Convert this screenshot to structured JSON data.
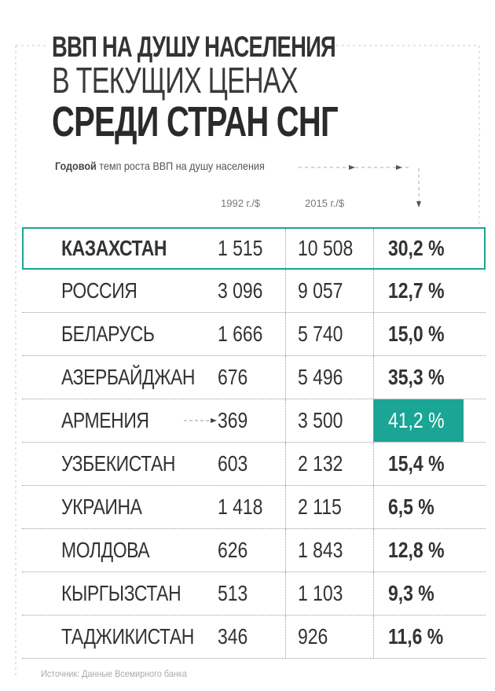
{
  "title": {
    "line1": "ВВП НА ДУШУ НАСЕЛЕНИЯ",
    "line2": "В ТЕКУЩИХ ЦЕНАХ",
    "line3": "СРЕДИ СТРАН СНГ"
  },
  "subtitle": {
    "bold": "Годовой",
    "rest": " темп роста ВВП на душу населения"
  },
  "columns": {
    "col1": "1992 г./$",
    "col2": "2015 г./$"
  },
  "colors": {
    "accent": "#1aa595",
    "text": "#333333"
  },
  "chart_data": {
    "type": "table",
    "title": "ВВП НА ДУШУ НАСЕЛЕНИЯ В ТЕКУЩИХ ЦЕНАХ СРЕДИ СТРАН СНГ",
    "columns": [
      "",
      "1992 г./$",
      "2015 г./$",
      "Годовой темп роста ВВП на душу населения"
    ],
    "rows": [
      {
        "country": "КАЗАХСТАН",
        "v1992": "1 515",
        "v2015": "10 508",
        "growth": "30,2 %"
      },
      {
        "country": "РОССИЯ",
        "v1992": "3 096",
        "v2015": "9 057",
        "growth": "12,7 %"
      },
      {
        "country": "БЕЛАРУСЬ",
        "v1992": "1 666",
        "v2015": "5 740",
        "growth": "15,0 %"
      },
      {
        "country": "АЗЕРБАЙДЖАН",
        "v1992": "676",
        "v2015": "5 496",
        "growth": "35,3 %"
      },
      {
        "country": "АРМЕНИЯ",
        "v1992": "369",
        "v2015": "3 500",
        "growth": "41,2 %"
      },
      {
        "country": "УЗБЕКИСТАН",
        "v1992": "603",
        "v2015": "2 132",
        "growth": "15,4 %"
      },
      {
        "country": "УКРАИНА",
        "v1992": "1 418",
        "v2015": "2 115",
        "growth": "6,5 %"
      },
      {
        "country": "МОЛДОВА",
        "v1992": "626",
        "v2015": "1 843",
        "growth": "12,8 %"
      },
      {
        "country": "КЫРГЫЗСТАН",
        "v1992": "513",
        "v2015": "1 103",
        "growth": "9,3 %"
      },
      {
        "country": "ТАДЖИКИСТАН",
        "v1992": "346",
        "v2015": "926",
        "growth": "11,6 %"
      }
    ],
    "highlighted_row": 0,
    "max_growth_row": 4
  },
  "source": "Источник: Данные Всемирного банка"
}
